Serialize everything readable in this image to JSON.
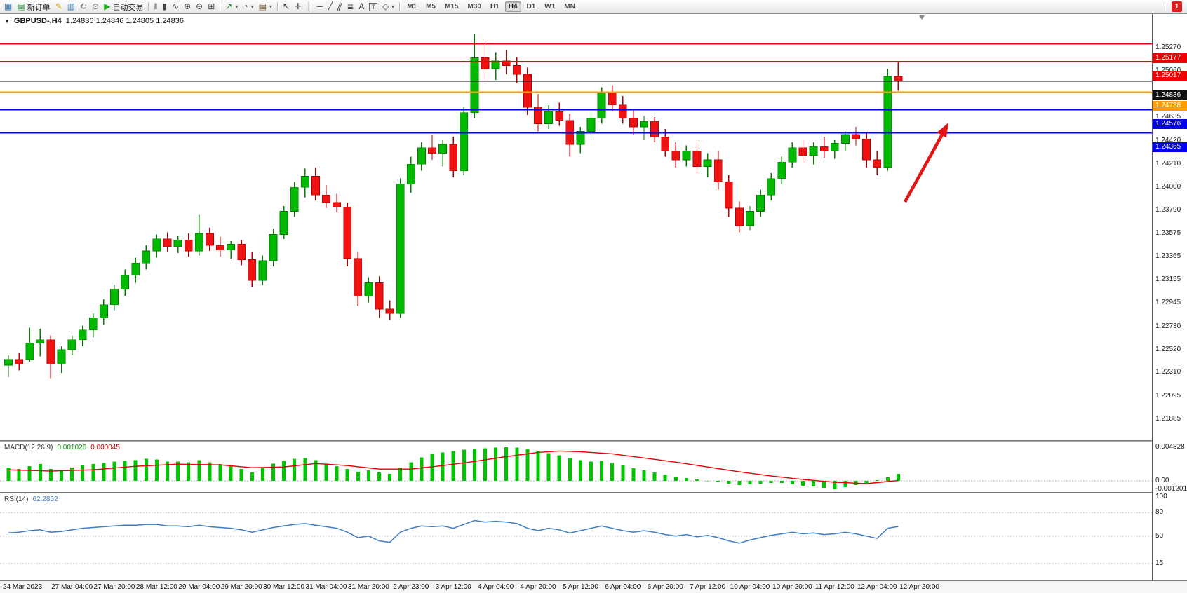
{
  "toolbar": {
    "items": [
      {
        "kind": "icon",
        "name": "new-chart-button",
        "glyph": "▦",
        "color": "#3c78aa"
      },
      {
        "kind": "labeled",
        "name": "new-order-button",
        "glyph": "▤",
        "glyph_color": "#2e9e3e",
        "label": "新订单"
      },
      {
        "kind": "icon",
        "name": "metaeditor-button",
        "glyph": "✎",
        "color": "#d9a514"
      },
      {
        "kind": "icon",
        "name": "print-button",
        "glyph": "▥",
        "color": "#3c78aa"
      },
      {
        "kind": "icon",
        "name": "refresh-button",
        "glyph": "↻",
        "color": "#6a6a6a"
      },
      {
        "kind": "icon",
        "name": "snapshot-button",
        "glyph": "⊙",
        "color": "#6a6a6a"
      },
      {
        "kind": "labeled",
        "name": "autotrading-button",
        "glyph": "▶",
        "glyph_color": "#1faa1f",
        "label": "自动交易"
      },
      {
        "kind": "sep"
      },
      {
        "kind": "icon",
        "name": "bar-chart-button",
        "glyph": "‖",
        "color": "#444444"
      },
      {
        "kind": "icon",
        "name": "candlestick-chart-button",
        "glyph": "▮",
        "color": "#444444"
      },
      {
        "kind": "icon",
        "name": "line-chart-button",
        "glyph": "∿",
        "color": "#444444"
      },
      {
        "kind": "icon",
        "name": "zoom-in-button",
        "glyph": "⊕",
        "color": "#444444"
      },
      {
        "kind": "icon",
        "name": "zoom-out-button",
        "glyph": "⊖",
        "color": "#444444"
      },
      {
        "kind": "icon",
        "name": "tile-windows-button",
        "glyph": "⊞",
        "color": "#444444"
      },
      {
        "kind": "sep"
      },
      {
        "kind": "dropdown",
        "name": "indicators-button",
        "glyph": "↗",
        "color": "#2e7d32"
      },
      {
        "kind": "dropdown",
        "name": "periods-button",
        "glyph": "◔",
        "color": "#444444"
      },
      {
        "kind": "dropdown",
        "name": "templates-button",
        "glyph": "▤",
        "color": "#7a5c2e"
      },
      {
        "kind": "sep"
      },
      {
        "kind": "icon",
        "name": "cursor-button",
        "glyph": "↖",
        "color": "#444444"
      },
      {
        "kind": "icon",
        "name": "crosshair-button",
        "glyph": "✛",
        "color": "#444444"
      },
      {
        "kind": "icon",
        "name": "vertical-line-button",
        "glyph": "│",
        "color": "#444444"
      },
      {
        "kind": "icon",
        "name": "horizontal-line-button",
        "glyph": "─",
        "color": "#444444"
      },
      {
        "kind": "icon",
        "name": "trendline-button",
        "glyph": "╱",
        "color": "#444444"
      },
      {
        "kind": "icon",
        "name": "channel-button",
        "glyph": "∥",
        "color": "#444444",
        "tilt": true
      },
      {
        "kind": "icon",
        "name": "fibonacci-button",
        "glyph": "≣",
        "color": "#444444"
      },
      {
        "kind": "icon",
        "name": "text-button",
        "glyph": "A",
        "color": "#444444"
      },
      {
        "kind": "icon",
        "name": "label-button",
        "glyph": "T",
        "color": "#444444",
        "boxed": true
      },
      {
        "kind": "dropdown",
        "name": "shapes-button",
        "glyph": "◇",
        "color": "#444444"
      },
      {
        "kind": "sep"
      }
    ],
    "timeframes": [
      "M1",
      "M5",
      "M15",
      "M30",
      "H1",
      "H4",
      "D1",
      "W1",
      "MN"
    ],
    "active_timeframe": "H4",
    "notification_count": "1"
  },
  "chart": {
    "title_symbol": "GBPUSD-,H4",
    "title_quotes": "1.24836 1.24846 1.24805 1.24836",
    "price_ticks": [
      "1.25270",
      "1.25060",
      "1.24845",
      "1.24635",
      "1.24420",
      "1.24210",
      "1.24000",
      "1.23790",
      "1.23575",
      "1.23365",
      "1.23155",
      "1.22945",
      "1.22730",
      "1.22520",
      "1.22310",
      "1.22095",
      "1.21885"
    ],
    "levels": [
      {
        "price": 1.25177,
        "label": "1.25177",
        "color": "#ee0000",
        "width": 1.4
      },
      {
        "price": 1.25017,
        "label": "1.25017",
        "color": "#ee0000",
        "width": 1.4
      },
      {
        "price": 1.24836,
        "label": "1.24836",
        "color": "#111111",
        "width": 1
      },
      {
        "price": 1.24738,
        "label": "1.24738",
        "color": "#ff9c00",
        "width": 2
      },
      {
        "price": 1.24576,
        "label": "1.24576",
        "color": "#0000ee",
        "width": 2
      },
      {
        "price": 1.24365,
        "label": "1.24365",
        "color": "#0000ee",
        "width": 2
      }
    ],
    "arrow_color": "#e21414"
  },
  "chart_data": {
    "type": "candlestick",
    "symbol": "GBPUSD-",
    "timeframe": "H4",
    "ohlc": [
      [
        1.2225,
        1.2234,
        1.2214,
        1.223
      ],
      [
        1.223,
        1.2236,
        1.222,
        1.2226
      ],
      [
        1.223,
        1.2259,
        1.2228,
        1.2245
      ],
      [
        1.2245,
        1.2258,
        1.2233,
        1.2248
      ],
      [
        1.2248,
        1.2252,
        1.2213,
        1.2226
      ],
      [
        1.2226,
        1.2242,
        1.2218,
        1.2239
      ],
      [
        1.2239,
        1.2252,
        1.2234,
        1.2248
      ],
      [
        1.2248,
        1.2261,
        1.2242,
        1.2257
      ],
      [
        1.2257,
        1.2272,
        1.225,
        1.2268
      ],
      [
        1.2268,
        1.2285,
        1.2262,
        1.228
      ],
      [
        1.228,
        1.2298,
        1.2275,
        1.2294
      ],
      [
        1.2294,
        1.2312,
        1.2288,
        1.2307
      ],
      [
        1.2307,
        1.2323,
        1.23,
        1.2318
      ],
      [
        1.2318,
        1.2334,
        1.2312,
        1.2329
      ],
      [
        1.2329,
        1.2344,
        1.2323,
        1.234
      ],
      [
        1.234,
        1.2346,
        1.2328,
        1.2333
      ],
      [
        1.2333,
        1.2343,
        1.2327,
        1.2339
      ],
      [
        1.2339,
        1.2345,
        1.2324,
        1.2329
      ],
      [
        1.2329,
        1.2362,
        1.2325,
        1.2345
      ],
      [
        1.2345,
        1.235,
        1.2329,
        1.2334
      ],
      [
        1.2334,
        1.2342,
        1.2324,
        1.233
      ],
      [
        1.233,
        1.2338,
        1.2322,
        1.2335
      ],
      [
        1.2335,
        1.2339,
        1.2316,
        1.2321
      ],
      [
        1.2321,
        1.2328,
        1.2296,
        1.2302
      ],
      [
        1.2302,
        1.2325,
        1.2298,
        1.232
      ],
      [
        1.232,
        1.2349,
        1.2315,
        1.2344
      ],
      [
        1.2344,
        1.237,
        1.234,
        1.2365
      ],
      [
        1.2365,
        1.2392,
        1.236,
        1.2387
      ],
      [
        1.2387,
        1.2404,
        1.2378,
        1.2397
      ],
      [
        1.2397,
        1.2405,
        1.2375,
        1.238
      ],
      [
        1.238,
        1.2389,
        1.2368,
        1.2373
      ],
      [
        1.2373,
        1.2381,
        1.2364,
        1.2369
      ],
      [
        1.2369,
        1.2373,
        1.2315,
        1.2322
      ],
      [
        1.2322,
        1.2328,
        1.2279,
        1.2288
      ],
      [
        1.2288,
        1.2305,
        1.2282,
        1.23
      ],
      [
        1.23,
        1.2306,
        1.2268,
        1.2276
      ],
      [
        1.2276,
        1.2284,
        1.2266,
        1.2272
      ],
      [
        1.2272,
        1.2395,
        1.2268,
        1.239
      ],
      [
        1.239,
        1.2415,
        1.2382,
        1.2408
      ],
      [
        1.2408,
        1.2428,
        1.2402,
        1.2423
      ],
      [
        1.2423,
        1.2435,
        1.2412,
        1.2418
      ],
      [
        1.2418,
        1.243,
        1.2406,
        1.2426
      ],
      [
        1.2426,
        1.2433,
        1.2396,
        1.2402
      ],
      [
        1.2402,
        1.246,
        1.2398,
        1.2455
      ],
      [
        1.2455,
        1.2527,
        1.245,
        1.2505
      ],
      [
        1.2505,
        1.252,
        1.2483,
        1.2495
      ],
      [
        1.2495,
        1.251,
        1.2485,
        1.2502
      ],
      [
        1.2502,
        1.2512,
        1.249,
        1.2498
      ],
      [
        1.2498,
        1.2506,
        1.2482,
        1.249
      ],
      [
        1.249,
        1.2496,
        1.2453,
        1.246
      ],
      [
        1.246,
        1.2472,
        1.2438,
        1.2445
      ],
      [
        1.2445,
        1.2462,
        1.244,
        1.2456
      ],
      [
        1.2456,
        1.2464,
        1.2443,
        1.2448
      ],
      [
        1.2448,
        1.2454,
        1.2415,
        1.2426
      ],
      [
        1.2426,
        1.2442,
        1.2418,
        1.2438
      ],
      [
        1.2438,
        1.2455,
        1.2432,
        1.245
      ],
      [
        1.245,
        1.2478,
        1.2445,
        1.2473
      ],
      [
        1.2473,
        1.248,
        1.2456,
        1.2462
      ],
      [
        1.2462,
        1.247,
        1.2445,
        1.245
      ],
      [
        1.245,
        1.2458,
        1.2435,
        1.2442
      ],
      [
        1.2442,
        1.2452,
        1.243,
        1.2447
      ],
      [
        1.2447,
        1.2451,
        1.2428,
        1.2433
      ],
      [
        1.2433,
        1.244,
        1.2415,
        1.242
      ],
      [
        1.242,
        1.2428,
        1.2405,
        1.2412
      ],
      [
        1.2412,
        1.2425,
        1.2406,
        1.242
      ],
      [
        1.242,
        1.2428,
        1.24,
        1.2406
      ],
      [
        1.2406,
        1.2418,
        1.2396,
        1.2412
      ],
      [
        1.2412,
        1.242,
        1.2385,
        1.2392
      ],
      [
        1.2392,
        1.2398,
        1.236,
        1.2368
      ],
      [
        1.2368,
        1.2374,
        1.2346,
        1.2352
      ],
      [
        1.2352,
        1.237,
        1.2348,
        1.2365
      ],
      [
        1.2365,
        1.2385,
        1.236,
        1.238
      ],
      [
        1.238,
        1.24,
        1.2375,
        1.2395
      ],
      [
        1.2395,
        1.2415,
        1.239,
        1.241
      ],
      [
        1.241,
        1.2428,
        1.2405,
        1.2423
      ],
      [
        1.2423,
        1.243,
        1.241,
        1.2416
      ],
      [
        1.2416,
        1.2428,
        1.2408,
        1.2424
      ],
      [
        1.2424,
        1.2433,
        1.2414,
        1.242
      ],
      [
        1.242,
        1.243,
        1.2413,
        1.2427
      ],
      [
        1.2427,
        1.2438,
        1.242,
        1.2435
      ],
      [
        1.2435,
        1.2442,
        1.2425,
        1.2431
      ],
      [
        1.2431,
        1.2436,
        1.2405,
        1.2412
      ],
      [
        1.2412,
        1.242,
        1.2398,
        1.2405
      ],
      [
        1.2405,
        1.2495,
        1.2402,
        1.2488
      ],
      [
        1.2488,
        1.2502,
        1.2475,
        1.24836
      ]
    ],
    "time_labels": [
      {
        "text": "24 Mar 2023",
        "bar": 0
      },
      {
        "text": "27 Mar 04:00",
        "bar": 6
      },
      {
        "text": "27 Mar 20:00",
        "bar": 10
      },
      {
        "text": "28 Mar 12:00",
        "bar": 14
      },
      {
        "text": "29 Mar 04:00",
        "bar": 18
      },
      {
        "text": "29 Mar 20:00",
        "bar": 22
      },
      {
        "text": "30 Mar 12:00",
        "bar": 26
      },
      {
        "text": "31 Mar 04:00",
        "bar": 30
      },
      {
        "text": "31 Mar 20:00",
        "bar": 34
      },
      {
        "text": "2 Apr 23:00",
        "bar": 38
      },
      {
        "text": "3 Apr 12:00",
        "bar": 42
      },
      {
        "text": "4 Apr 04:00",
        "bar": 46
      },
      {
        "text": "4 Apr 20:00",
        "bar": 50
      },
      {
        "text": "5 Apr 12:00",
        "bar": 54
      },
      {
        "text": "6 Apr 04:00",
        "bar": 58
      },
      {
        "text": "6 Apr 20:00",
        "bar": 62
      },
      {
        "text": "7 Apr 12:00",
        "bar": 66
      },
      {
        "text": "10 Apr 04:00",
        "bar": 70
      },
      {
        "text": "10 Apr 20:00",
        "bar": 74
      },
      {
        "text": "11 Apr 12:00",
        "bar": 78
      },
      {
        "text": "12 Apr 04:00",
        "bar": 82
      },
      {
        "text": "12 Apr 20:00",
        "bar": 86
      }
    ],
    "macd": {
      "name": "MACD(12,26,9)",
      "value": "0.001026",
      "signal": "0.000045",
      "scale_labels": [
        "0.004828",
        "0.00",
        "-0.001201"
      ],
      "histogram": [
        0.0019,
        0.0017,
        0.0021,
        0.0024,
        0.0017,
        0.0015,
        0.0019,
        0.0022,
        0.0024,
        0.0026,
        0.0028,
        0.0029,
        0.003,
        0.0032,
        0.0031,
        0.0028,
        0.0028,
        0.0027,
        0.003,
        0.0027,
        0.0024,
        0.0021,
        0.0017,
        0.0012,
        0.0019,
        0.0025,
        0.0029,
        0.0032,
        0.0033,
        0.003,
        0.0025,
        0.0021,
        0.0017,
        0.0013,
        0.0015,
        0.0012,
        0.001,
        0.0019,
        0.0027,
        0.0034,
        0.0039,
        0.0041,
        0.0043,
        0.0045,
        0.0046,
        0.0047,
        0.0048,
        0.00483,
        0.0048,
        0.0046,
        0.0043,
        0.004,
        0.0037,
        0.0033,
        0.003,
        0.0028,
        0.0029,
        0.0026,
        0.0022,
        0.0018,
        0.0015,
        0.0012,
        0.0009,
        0.0006,
        0.0004,
        0.0002,
        0.0,
        -0.0002,
        -0.0004,
        -0.0006,
        -0.0005,
        -0.0004,
        -0.0003,
        -0.0003,
        -0.0005,
        -0.0007,
        -0.0008,
        -0.001,
        -0.0012,
        -0.0009,
        -0.0006,
        -0.0003,
        0.0001,
        0.0005,
        0.001026
      ],
      "signal_points": [
        [
          0,
          0.0016
        ],
        [
          4,
          0.0014
        ],
        [
          8,
          0.0016
        ],
        [
          12,
          0.0021
        ],
        [
          16,
          0.0024
        ],
        [
          20,
          0.0023
        ],
        [
          23,
          0.0019
        ],
        [
          26,
          0.002
        ],
        [
          29,
          0.0025
        ],
        [
          32,
          0.0022
        ],
        [
          35,
          0.0017
        ],
        [
          38,
          0.0017
        ],
        [
          41,
          0.0022
        ],
        [
          44,
          0.0028
        ],
        [
          47,
          0.0035
        ],
        [
          50,
          0.0041
        ],
        [
          52,
          0.0043
        ],
        [
          54,
          0.0042
        ],
        [
          57,
          0.0039
        ],
        [
          60,
          0.0033
        ],
        [
          63,
          0.0027
        ],
        [
          66,
          0.002
        ],
        [
          69,
          0.0013
        ],
        [
          72,
          0.0007
        ],
        [
          75,
          0.0002
        ],
        [
          78,
          -0.0002
        ],
        [
          81,
          -0.0004
        ],
        [
          84,
          4.5e-05
        ]
      ]
    },
    "rsi": {
      "name": "RSI(14)",
      "value": "62.2852",
      "scale_labels": [
        "100",
        "80",
        "50",
        "15"
      ],
      "levels": [
        80,
        50,
        15
      ],
      "values": [
        54,
        55,
        57,
        58,
        55,
        56,
        58,
        60,
        61,
        62,
        63,
        64,
        64,
        65,
        65,
        63,
        63,
        62,
        64,
        62,
        61,
        60,
        58,
        55,
        58,
        61,
        63,
        65,
        66,
        64,
        62,
        60,
        55,
        48,
        50,
        44,
        42,
        55,
        60,
        63,
        62,
        63,
        60,
        65,
        70,
        68,
        69,
        68,
        66,
        60,
        57,
        60,
        58,
        54,
        57,
        60,
        63,
        60,
        57,
        55,
        57,
        55,
        52,
        50,
        52,
        49,
        51,
        48,
        44,
        41,
        45,
        48,
        51,
        53,
        55,
        53,
        54,
        52,
        53,
        55,
        53,
        50,
        47,
        60,
        62.2852
      ]
    }
  }
}
